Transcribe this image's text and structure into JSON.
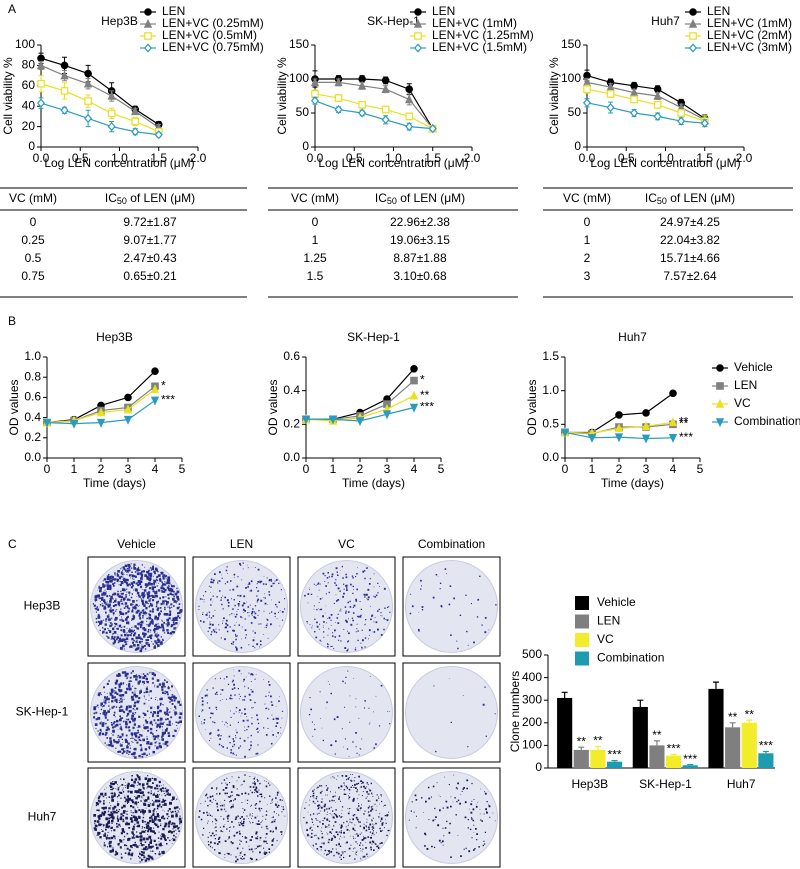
{
  "panel_labels": [
    "A",
    "B",
    "C"
  ],
  "chart_data": [
    {
      "type": "line",
      "title": "Hep3B",
      "x_label": "Log LEN concentration (μM)",
      "y_label": "Cell viability %",
      "x": [
        0,
        0.3,
        0.6,
        0.9,
        1.2,
        1.5
      ],
      "xlim": [
        0,
        2
      ],
      "xticks": [
        {
          "value": 0,
          "label": "0.0"
        },
        0.5,
        {
          "value": 1,
          "label": "1.0"
        },
        1.5,
        {
          "value": 2,
          "label": "2.0"
        }
      ],
      "ylim": [
        0,
        100
      ],
      "yticks": [
        0,
        20,
        40,
        60,
        80,
        100
      ],
      "legend": "top-right",
      "series": [
        {
          "name": "LEN",
          "color": "#000000",
          "marker": "circle",
          "filled": true,
          "values": [
            87,
            80,
            72,
            55,
            37,
            22
          ],
          "errors": [
            5,
            8,
            8,
            8,
            3,
            3
          ]
        },
        {
          "name": "LEN+VC (0.25mM)",
          "color": "#808080",
          "marker": "triangle",
          "filled": true,
          "values": [
            80,
            70,
            62,
            50,
            35,
            19
          ],
          "errors": [
            4,
            5,
            5,
            5,
            3,
            3
          ]
        },
        {
          "name": "LEN+VC (0.5mM)",
          "color": "#e8e020",
          "marker": "square",
          "filled": false,
          "values": [
            62,
            55,
            45,
            33,
            25,
            15
          ],
          "errors": [
            8,
            8,
            6,
            5,
            4,
            3
          ]
        },
        {
          "name": "LEN+VC (0.75mM)",
          "color": "#2a9bc0",
          "marker": "diamond",
          "filled": false,
          "values": [
            43,
            36,
            28,
            20,
            15,
            12
          ],
          "errors": [
            5,
            3,
            8,
            5,
            3,
            2
          ]
        }
      ]
    },
    {
      "type": "line",
      "title": "SK-Hep-1",
      "x_label": "Log LEN concentration (μM)",
      "y_label": "Cell viability %",
      "x": [
        0,
        0.3,
        0.6,
        0.9,
        1.2,
        1.5
      ],
      "xlim": [
        0,
        2
      ],
      "xticks": [
        {
          "value": 0,
          "label": "0.0"
        },
        0.5,
        {
          "value": 1,
          "label": "1.0"
        },
        1.5,
        {
          "value": 2,
          "label": "2.0"
        }
      ],
      "ylim": [
        0,
        150
      ],
      "yticks": [
        0,
        50,
        100,
        150
      ],
      "legend": "top-right",
      "series": [
        {
          "name": "LEN",
          "color": "#000000",
          "marker": "circle",
          "filled": true,
          "values": [
            100,
            100,
            100,
            98,
            85,
            27
          ],
          "errors": [
            12,
            5,
            5,
            5,
            8,
            3
          ]
        },
        {
          "name": "LEN+VC (1mM)",
          "color": "#808080",
          "marker": "triangle",
          "filled": true,
          "values": [
            95,
            95,
            90,
            85,
            70,
            27
          ],
          "errors": [
            5,
            5,
            5,
            5,
            8,
            3
          ]
        },
        {
          "name": "LEN+VC (1.25mM)",
          "color": "#e8e020",
          "marker": "square",
          "filled": false,
          "values": [
            78,
            72,
            62,
            55,
            45,
            27
          ],
          "errors": [
            6,
            5,
            5,
            5,
            5,
            3
          ]
        },
        {
          "name": "LEN+VC (1.5mM)",
          "color": "#2a9bc0",
          "marker": "diamond",
          "filled": false,
          "values": [
            68,
            55,
            50,
            40,
            30,
            27
          ],
          "errors": [
            5,
            4,
            4,
            6,
            5,
            3
          ]
        }
      ]
    },
    {
      "type": "line",
      "title": "Huh7",
      "x_label": "Log LEN concentration (μM)",
      "y_label": "Cell viability %",
      "x": [
        0,
        0.3,
        0.6,
        0.9,
        1.2,
        1.5
      ],
      "xlim": [
        0,
        2
      ],
      "xticks": [
        {
          "value": 0,
          "label": "0.0"
        },
        0.5,
        {
          "value": 1,
          "label": "1.0"
        },
        1.5,
        {
          "value": 2,
          "label": "2.0"
        }
      ],
      "ylim": [
        0,
        150
      ],
      "yticks": [
        0,
        50,
        100,
        150
      ],
      "legend": "top-right",
      "series": [
        {
          "name": "LEN",
          "color": "#000000",
          "marker": "circle",
          "filled": true,
          "values": [
            105,
            95,
            90,
            85,
            65,
            42
          ],
          "errors": [
            8,
            5,
            5,
            5,
            5,
            5
          ]
        },
        {
          "name": "LEN+VC (1mM)",
          "color": "#808080",
          "marker": "triangle",
          "filled": true,
          "values": [
            95,
            88,
            80,
            75,
            58,
            40
          ],
          "errors": [
            6,
            5,
            5,
            5,
            5,
            5
          ]
        },
        {
          "name": "LEN+VC (2mM)",
          "color": "#e8e020",
          "marker": "square",
          "filled": false,
          "values": [
            85,
            78,
            70,
            62,
            50,
            38
          ],
          "errors": [
            6,
            5,
            5,
            5,
            5,
            8
          ]
        },
        {
          "name": "LEN+VC (3mM)",
          "color": "#2a9bc0",
          "marker": "diamond",
          "filled": false,
          "values": [
            65,
            58,
            50,
            45,
            38,
            35
          ],
          "errors": [
            6,
            8,
            5,
            5,
            5,
            5
          ]
        }
      ]
    },
    {
      "type": "line",
      "title": "Hep3B",
      "x_label": "Time (days)",
      "y_label": "OD values",
      "x": [
        0,
        1,
        2,
        3,
        4
      ],
      "xlim": [
        0,
        5
      ],
      "xticks": [
        0,
        1,
        2,
        3,
        4,
        5
      ],
      "ylim": [
        0,
        1
      ],
      "yticks": [
        {
          "value": 0,
          "label": "0.0"
        },
        0.2,
        0.4,
        0.6,
        0.8,
        {
          "value": 1,
          "label": "1.0"
        }
      ],
      "series": [
        {
          "color": "#000000",
          "marker": "circle",
          "filled": true,
          "values": [
            0.35,
            0.38,
            0.52,
            0.6,
            0.86
          ]
        },
        {
          "color": "#808080",
          "marker": "square",
          "filled": true,
          "values": [
            0.35,
            0.37,
            0.47,
            0.5,
            0.71
          ],
          "sig": "*"
        },
        {
          "color": "#e8e020",
          "marker": "triangle",
          "filled": true,
          "values": [
            0.35,
            0.37,
            0.45,
            0.48,
            0.68
          ]
        },
        {
          "color": "#2a9bc0",
          "marker": "triangle-down",
          "filled": true,
          "values": [
            0.35,
            0.34,
            0.35,
            0.38,
            0.57
          ],
          "sig": "***"
        }
      ]
    },
    {
      "type": "line",
      "title": "SK-Hep-1",
      "x_label": "Time (days)",
      "y_label": "OD values",
      "x": [
        0,
        1,
        2,
        3,
        4
      ],
      "xlim": [
        0,
        5
      ],
      "xticks": [
        0,
        1,
        2,
        3,
        4,
        5
      ],
      "ylim": [
        0,
        0.6
      ],
      "yticks": [
        {
          "value": 0,
          "label": "0.0"
        },
        0.2,
        0.4,
        0.6
      ],
      "series": [
        {
          "color": "#000000",
          "marker": "circle",
          "filled": true,
          "values": [
            0.23,
            0.23,
            0.27,
            0.35,
            0.53
          ]
        },
        {
          "color": "#808080",
          "marker": "square",
          "filled": true,
          "values": [
            0.23,
            0.23,
            0.25,
            0.32,
            0.46
          ],
          "sig": "*"
        },
        {
          "color": "#e8e020",
          "marker": "triangle",
          "filled": true,
          "values": [
            0.23,
            0.22,
            0.24,
            0.29,
            0.37
          ],
          "sig": "**"
        },
        {
          "color": "#2a9bc0",
          "marker": "triangle-down",
          "filled": true,
          "values": [
            0.23,
            0.23,
            0.22,
            0.26,
            0.3
          ],
          "sig": "***"
        }
      ]
    },
    {
      "type": "line",
      "title": "Huh7",
      "x_label": "Time (days)",
      "y_label": "OD values",
      "x": [
        0,
        1,
        2,
        3,
        4
      ],
      "xlim": [
        0,
        5
      ],
      "xticks": [
        0,
        1,
        2,
        3,
        4,
        5
      ],
      "ylim": [
        0,
        1.5
      ],
      "yticks": [
        {
          "value": 0,
          "label": "0.0"
        },
        0.5,
        {
          "value": 1,
          "label": "1.0"
        },
        1.5
      ],
      "legend": "right",
      "series": [
        {
          "name": "Vehicle",
          "color": "#000000",
          "marker": "circle",
          "filled": true,
          "values": [
            0.38,
            0.38,
            0.64,
            0.67,
            0.96
          ]
        },
        {
          "name": "LEN",
          "color": "#808080",
          "marker": "square",
          "filled": true,
          "values": [
            0.38,
            0.36,
            0.46,
            0.46,
            0.5
          ],
          "sig": "**"
        },
        {
          "name": "VC",
          "color": "#e8e020",
          "marker": "triangle",
          "filled": true,
          "values": [
            0.38,
            0.37,
            0.44,
            0.47,
            0.53
          ],
          "sig": "**"
        },
        {
          "name": "Combination",
          "color": "#2a9bc0",
          "marker": "triangle-down",
          "filled": true,
          "values": [
            0.38,
            0.3,
            0.31,
            0.29,
            0.3
          ],
          "sig": "***"
        }
      ]
    },
    {
      "type": "bar",
      "y_label": "Clone numbers",
      "categories": [
        "Hep3B",
        "SK-Hep-1",
        "Huh7"
      ],
      "ylim": [
        0,
        500
      ],
      "yticks": [
        0,
        100,
        200,
        300,
        400,
        500
      ],
      "legend": "top",
      "series": [
        {
          "name": "Vehicle",
          "color": "#000000",
          "values": [
            310,
            270,
            350
          ],
          "errors": [
            25,
            30,
            30
          ]
        },
        {
          "name": "LEN",
          "color": "#7f7f7f",
          "values": [
            80,
            100,
            180
          ],
          "errors": [
            12,
            20,
            20
          ],
          "sig": [
            "**",
            "**",
            "**"
          ]
        },
        {
          "name": "VC",
          "color": "#f2ec2a",
          "values": [
            80,
            55,
            200
          ],
          "errors": [
            15,
            5,
            12
          ],
          "sig": [
            "**",
            "***",
            "**"
          ]
        },
        {
          "name": "Combination",
          "color": "#1f9bb0",
          "values": [
            28,
            12,
            65
          ],
          "errors": [
            5,
            3,
            8
          ],
          "sig": [
            "***",
            "***",
            "***"
          ]
        }
      ]
    }
  ],
  "tables": [
    {
      "header": [
        "VC (mM)",
        [
          "IC",
          "50",
          " of LEN (μM)"
        ]
      ],
      "rows": [
        [
          "0",
          "9.72±1.87"
        ],
        [
          "0.25",
          "9.07±1.77"
        ],
        [
          "0.5",
          "2.47±0.43"
        ],
        [
          "0.75",
          "0.65±0.21"
        ]
      ]
    },
    {
      "header": [
        "VC (mM)",
        [
          "IC",
          "50",
          " of LEN (μM)"
        ]
      ],
      "rows": [
        [
          "0",
          "22.96±2.38"
        ],
        [
          "1",
          "19.06±3.15"
        ],
        [
          "1.25",
          "8.87±1.88"
        ],
        [
          "1.5",
          "3.10±0.68"
        ]
      ]
    },
    {
      "header": [
        "VC (mM)",
        [
          "IC",
          "50",
          " of LEN (μM)"
        ]
      ],
      "rows": [
        [
          "0",
          "24.97±4.25"
        ],
        [
          "1",
          "22.04±3.82"
        ],
        [
          "2",
          "15.71±4.66"
        ],
        [
          "3",
          "7.57±2.64"
        ]
      ]
    }
  ],
  "colony_images": {
    "columns": [
      "Vehicle",
      "LEN",
      "VC",
      "Combination"
    ],
    "rows": [
      "Hep3B",
      "SK-Hep-1",
      "Huh7"
    ]
  }
}
